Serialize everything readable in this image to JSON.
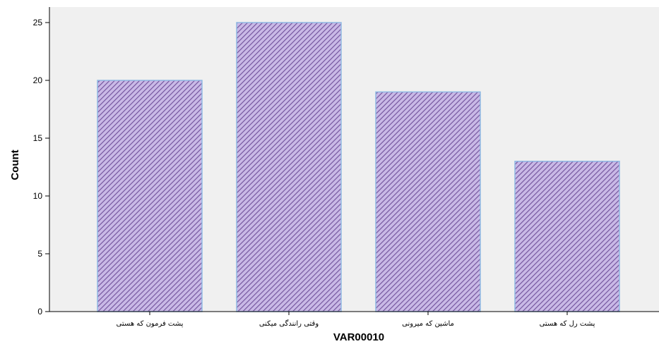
{
  "chart_data": {
    "type": "bar",
    "categories": [
      "پشت فرمون که هستی",
      "وقتی رانندگی میکنی",
      "ماشین که میرونی",
      "پشت رل که هستی"
    ],
    "values": [
      20,
      25,
      19,
      13
    ],
    "xlabel": "VAR00010",
    "ylabel": "Count",
    "ylim": [
      0,
      26
    ],
    "yticks": [
      0,
      5,
      10,
      15,
      20,
      25
    ],
    "grid": false,
    "legend": "none",
    "colors": {
      "plot_background": "#f0f0f0",
      "bar_hatch": "#6f4f9a",
      "bar_fill": "#c9b9e6",
      "bar_outline": "#8fb9e3",
      "axis": "#000000"
    }
  }
}
